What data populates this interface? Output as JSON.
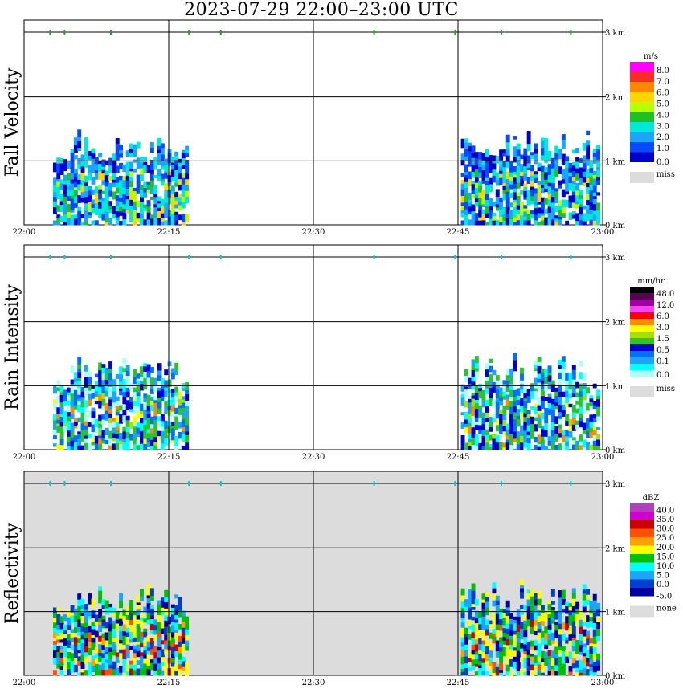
{
  "title": "2023-07-29   22:00–23:00 UTC",
  "chart_data": [
    {
      "type": "heatmap",
      "title": "Fall Velocity",
      "ylabel": "Fall Velocity",
      "x_ticks": [
        "22:00",
        "22:15",
        "22:30",
        "22:45",
        "23:00"
      ],
      "y_ticks": [
        "0 km",
        "1 km",
        "2 km",
        "3 km"
      ],
      "xlim": [
        "22:00",
        "23:00"
      ],
      "ylim": [
        0,
        3.2
      ],
      "grid": true,
      "background": "#ffffff",
      "legend": {
        "unit": "m/s",
        "labels": [
          "8.0",
          "7.0",
          "6.0",
          "5.0",
          "4.0",
          "3.0",
          "2.0",
          "1.0",
          "0.0"
        ],
        "colors": [
          "#ff00ff",
          "#ff2a2a",
          "#ff8800",
          "#ffd400",
          "#b8ff00",
          "#20c020",
          "#00e8d8",
          "#1aa6ff",
          "#0a4aff",
          "#0000cc"
        ],
        "miss_label": "miss",
        "miss_color": "#dcdcdc"
      }
    },
    {
      "type": "heatmap",
      "title": "Rain Intensity",
      "ylabel": "Rain Intensity",
      "x_ticks": [
        "22:00",
        "22:15",
        "22:30",
        "22:45",
        "23:00"
      ],
      "y_ticks": [
        "0 km",
        "1 km",
        "2 km",
        "3 km"
      ],
      "xlim": [
        "22:00",
        "23:00"
      ],
      "ylim": [
        0,
        3.2
      ],
      "grid": true,
      "background": "#ffffff",
      "legend": {
        "unit": "mm/hr",
        "labels": [
          "48.0",
          "12.0",
          "6.0",
          "3.0",
          "1.5",
          "0.5",
          "0.1",
          "0.0"
        ],
        "colors": [
          "#000000",
          "#5a0050",
          "#a000a0",
          "#ff40ff",
          "#ff0000",
          "#ff8c00",
          "#ffff00",
          "#a6e000",
          "#2cc42c",
          "#0000d0",
          "#0070ff",
          "#1aa6ff",
          "#00ffff",
          "#aaffff"
        ],
        "miss_label": "miss",
        "miss_color": "#dcdcdc"
      }
    },
    {
      "type": "heatmap",
      "title": "Reflectivity",
      "ylabel": "Reflectivity",
      "x_ticks": [
        "22:00",
        "22:15",
        "22:30",
        "22:45",
        "23:00"
      ],
      "y_ticks": [
        "0 km",
        "1 km",
        "2 km",
        "3 km"
      ],
      "xlim": [
        "22:00",
        "23:00"
      ],
      "ylim": [
        0,
        3.2
      ],
      "grid": true,
      "background": "#dcdcdc",
      "legend": {
        "unit": "dBZ",
        "labels": [
          "40.0",
          "35.0",
          "30.0",
          "25.0",
          "20.0",
          "15.0",
          "10.0",
          "5.0",
          "0.0",
          "-5.0"
        ],
        "colors": [
          "#b040c0",
          "#d000d0",
          "#cc0000",
          "#ff5000",
          "#ffa000",
          "#ffff00",
          "#00c000",
          "#00ffff",
          "#1aa6ff",
          "#0040d0",
          "#0000a0"
        ],
        "miss_label": "none",
        "miss_color": "#dcdcdc"
      }
    }
  ]
}
